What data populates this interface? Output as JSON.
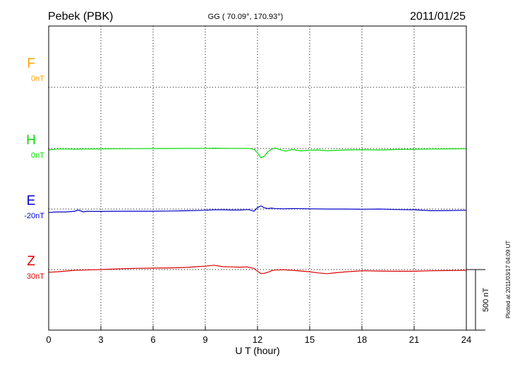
{
  "chart_data": {
    "type": "line",
    "station": "Pebek (PBK)",
    "coords": "GG ( 70.09°, 170.93°)",
    "date": "2011/01/25",
    "xlabel": "U T (hour)",
    "xlim": [
      0,
      24
    ],
    "xticks": [
      "0",
      "3",
      "6",
      "9",
      "12",
      "15",
      "18",
      "21",
      "24"
    ],
    "scale_label": "500 nT",
    "scale_nT": 500,
    "plotted_note": "Plotted at 2011/03/17 04:09 UT",
    "grid": true,
    "y_unit": "nT",
    "series": [
      {
        "name": "F",
        "baseline": "0nT",
        "color": "#ffa500",
        "x": [],
        "y": []
      },
      {
        "name": "H",
        "baseline": "0nT",
        "color": "#00dd00",
        "x": [
          0,
          0.5,
          1,
          1.5,
          2,
          3,
          4,
          5,
          6,
          7,
          8,
          8.5,
          9,
          9.5,
          10,
          10.5,
          11,
          11.5,
          11.8,
          12,
          12.2,
          12.4,
          12.6,
          12.8,
          13,
          13.3,
          13.6,
          14,
          14.5,
          15,
          15.5,
          16,
          17,
          18,
          19,
          20,
          21,
          22,
          23,
          24
        ],
        "y": [
          -12,
          -4,
          -4,
          -6,
          -4,
          -3,
          -2,
          -1,
          0,
          0,
          1,
          1,
          1,
          3,
          2,
          1,
          1,
          1,
          -6,
          -36,
          -76,
          -62,
          -26,
          -6,
          4,
          -10,
          -22,
          -8,
          -20,
          -14,
          -12,
          -18,
          -12,
          -10,
          -12,
          -8,
          -6,
          -4,
          -3,
          -2
        ]
      },
      {
        "name": "E",
        "baseline": "-20nT",
        "color": "#0000cc",
        "x": [
          0,
          0.5,
          1,
          1.5,
          1.7,
          2,
          2.2,
          2.5,
          3,
          4,
          5,
          6,
          7,
          8,
          9,
          9.5,
          10,
          10.5,
          11,
          11.5,
          11.8,
          12,
          12.2,
          12.4,
          12.6,
          12.8,
          13,
          13.5,
          14,
          15,
          16,
          17,
          18,
          19,
          20,
          21,
          22,
          23,
          24
        ],
        "y": [
          -28,
          -24,
          -24,
          -18,
          -8,
          -24,
          -18,
          -20,
          -20,
          -18,
          -18,
          -18,
          -16,
          -14,
          -10,
          -6,
          -6,
          -8,
          -8,
          -4,
          -18,
          12,
          26,
          10,
          4,
          8,
          4,
          2,
          4,
          2,
          0,
          0,
          -2,
          0,
          -4,
          -6,
          -14,
          -12,
          -10
        ]
      },
      {
        "name": "Z",
        "baseline": "30nT",
        "color": "#dd0000",
        "x": [
          0,
          0.5,
          1,
          1.5,
          2,
          2.5,
          3,
          4,
          5,
          6,
          7,
          8,
          8.5,
          9,
          9.5,
          10,
          10.5,
          11,
          11.4,
          11.8,
          12,
          12.2,
          12.4,
          12.6,
          12.8,
          13,
          13.5,
          14,
          14.5,
          15,
          15.5,
          16,
          16.5,
          17,
          18,
          19,
          20,
          21,
          22,
          23,
          24
        ],
        "y": [
          -22,
          -18,
          -12,
          -6,
          -4,
          -2,
          0,
          6,
          10,
          12,
          14,
          18,
          24,
          28,
          36,
          24,
          22,
          20,
          22,
          10,
          -14,
          -34,
          -30,
          -22,
          -10,
          -4,
          -2,
          -6,
          -12,
          -18,
          -28,
          -34,
          -26,
          -20,
          -10,
          -12,
          -14,
          -14,
          -10,
          -8,
          -6
        ]
      }
    ]
  }
}
